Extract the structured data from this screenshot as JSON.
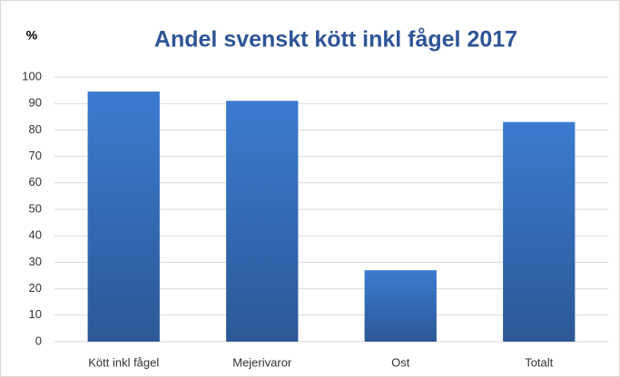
{
  "chart_data": {
    "type": "bar",
    "title": "Andel svenskt kött inkl fågel 2017",
    "ylabel": "%",
    "categories": [
      "Kött inkl fågel",
      "Mejerivaror",
      "Ost",
      "Totalt"
    ],
    "values": [
      94.5,
      91,
      27,
      83
    ],
    "color": "#3b7bd0",
    "ylim": [
      0,
      100
    ],
    "yticks": [
      0,
      10,
      20,
      30,
      40,
      50,
      60,
      70,
      80,
      90,
      100
    ],
    "grid": true
  }
}
